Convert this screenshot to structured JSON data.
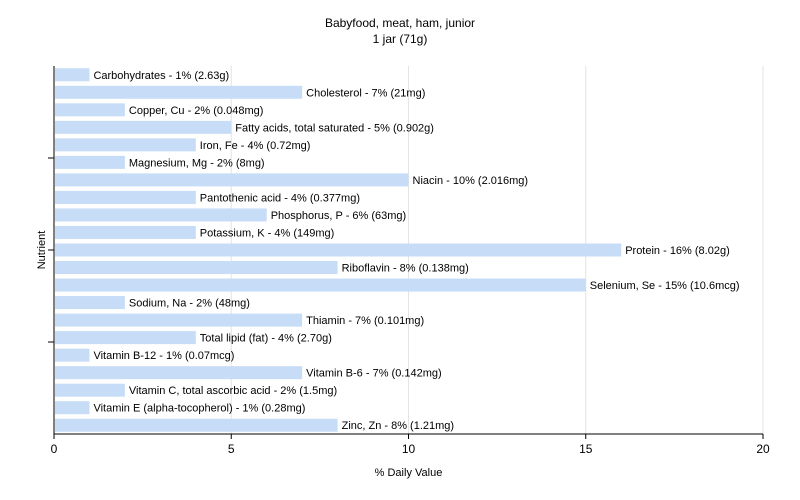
{
  "chart_data": {
    "type": "bar",
    "orientation": "horizontal",
    "title": "Babyfood, meat, ham, junior",
    "subtitle": "1 jar (71g)",
    "xlabel": "% Daily Value",
    "ylabel": "Nutrient",
    "xlim": [
      0,
      20
    ],
    "xticks": [
      0,
      5,
      10,
      15,
      20
    ],
    "grid": "vertical",
    "bar_color": "#c6dcf7",
    "categories": [
      "Carbohydrates",
      "Cholesterol",
      "Copper, Cu",
      "Fatty acids, total saturated",
      "Iron, Fe",
      "Magnesium, Mg",
      "Niacin",
      "Pantothenic acid",
      "Phosphorus, P",
      "Potassium, K",
      "Protein",
      "Riboflavin",
      "Selenium, Se",
      "Sodium, Na",
      "Thiamin",
      "Total lipid (fat)",
      "Vitamin B-12",
      "Vitamin B-6",
      "Vitamin C, total ascorbic acid",
      "Vitamin E (alpha-tocopherol)",
      "Zinc, Zn"
    ],
    "values": [
      1,
      7,
      2,
      5,
      4,
      2,
      10,
      4,
      6,
      4,
      16,
      8,
      15,
      2,
      7,
      4,
      1,
      7,
      2,
      1,
      8
    ],
    "labels": [
      "Carbohydrates - 1% (2.63g)",
      "Cholesterol - 7% (21mg)",
      "Copper, Cu - 2% (0.048mg)",
      "Fatty acids, total saturated - 5% (0.902g)",
      "Iron, Fe - 4% (0.72mg)",
      "Magnesium, Mg - 2% (8mg)",
      "Niacin - 10% (2.016mg)",
      "Pantothenic acid - 4% (0.377mg)",
      "Phosphorus, P - 6% (63mg)",
      "Potassium, K - 4% (149mg)",
      "Protein - 16% (8.02g)",
      "Riboflavin - 8% (0.138mg)",
      "Selenium, Se - 15% (10.6mcg)",
      "Sodium, Na - 2% (48mg)",
      "Thiamin - 7% (0.101mg)",
      "Total lipid (fat) - 4% (2.70g)",
      "Vitamin B-12 - 1% (0.07mcg)",
      "Vitamin B-6 - 7% (0.142mg)",
      "Vitamin C, total ascorbic acid - 2% (1.5mg)",
      "Vitamin E (alpha-tocopherol) - 1% (0.28mg)",
      "Zinc, Zn - 8% (1.21mg)"
    ]
  }
}
